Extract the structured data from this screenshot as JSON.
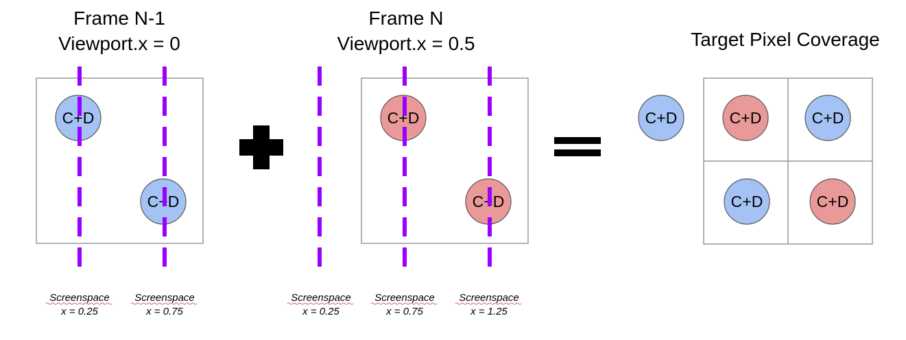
{
  "titles": {
    "frame_prev_line1": "Frame N-1",
    "frame_prev_line2": "Viewport.x = 0",
    "frame_curr_line1": "Frame N",
    "frame_curr_line2": "Viewport.x = 0.5",
    "target": "Target Pixel Coverage"
  },
  "sample_label": "C+D",
  "screenspace_word": "Screenspace",
  "captions": {
    "prev_025": "x = 0.25",
    "prev_075": "x = 0.75",
    "curr_025": "x = 0.25",
    "curr_075": "x = 0.75",
    "curr_125": "x = 1.25"
  },
  "operators": {
    "plus": "plus-sign-icon",
    "equals": "equals-sign-icon"
  },
  "colors": {
    "blue_sample": "#a4c2f4",
    "red_sample": "#ea9999",
    "guide_line": "#9900ff",
    "box_border": "#999999"
  }
}
